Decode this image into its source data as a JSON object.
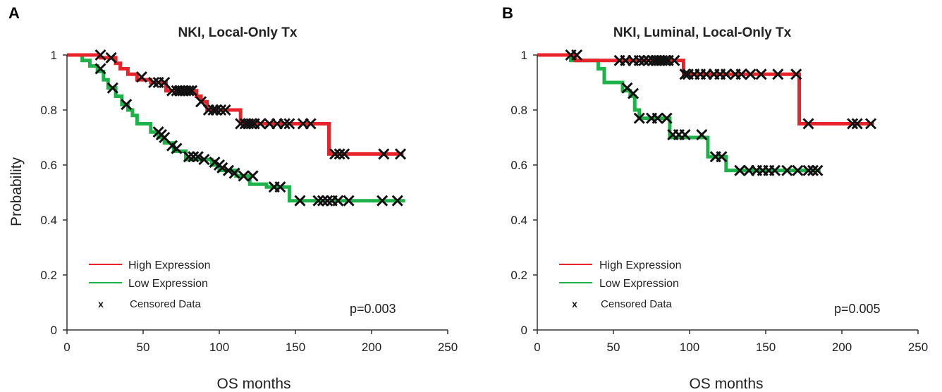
{
  "y_axis_label": "Probability",
  "x_axis_label": "OS months",
  "legend": {
    "high": "High Expression",
    "low": "Low Expression",
    "censored_marker": "x",
    "censored": "Censored Data"
  },
  "colors": {
    "high": "#e8242a",
    "low": "#1db34a",
    "censor": "#111111",
    "axis": "#333333"
  },
  "chart_data": [
    {
      "type": "line",
      "panel_label": "A",
      "title": "NKI, Local-Only Tx",
      "xlabel": "OS months",
      "ylabel": "Probability",
      "xlim": [
        0,
        250
      ],
      "ylim": [
        0,
        1
      ],
      "x_ticks": [
        0,
        50,
        100,
        150,
        200,
        250
      ],
      "y_ticks": [
        0,
        0.2,
        0.4,
        0.6,
        0.8,
        1
      ],
      "grid": false,
      "legend_position": "bottom-left",
      "p_value": "p=0.003",
      "series": [
        {
          "name": "High Expression",
          "step_points": [
            [
              0,
              1
            ],
            [
              22,
              1
            ],
            [
              22,
              0.99
            ],
            [
              32,
              0.99
            ],
            [
              32,
              0.97
            ],
            [
              35,
              0.97
            ],
            [
              35,
              0.95
            ],
            [
              40,
              0.95
            ],
            [
              40,
              0.93
            ],
            [
              46,
              0.93
            ],
            [
              46,
              0.91
            ],
            [
              55,
              0.91
            ],
            [
              55,
              0.9
            ],
            [
              65,
              0.9
            ],
            [
              65,
              0.87
            ],
            [
              85,
              0.87
            ],
            [
              85,
              0.85
            ],
            [
              88,
              0.85
            ],
            [
              88,
              0.83
            ],
            [
              92,
              0.83
            ],
            [
              92,
              0.8
            ],
            [
              114,
              0.8
            ],
            [
              114,
              0.75
            ],
            [
              172,
              0.75
            ],
            [
              172,
              0.64
            ],
            [
              221,
              0.64
            ]
          ],
          "censored": [
            [
              22,
              1
            ],
            [
              29,
              0.99
            ],
            [
              49,
              0.92
            ],
            [
              57,
              0.9
            ],
            [
              60,
              0.9
            ],
            [
              64,
              0.9
            ],
            [
              69,
              0.87
            ],
            [
              72,
              0.87
            ],
            [
              74,
              0.87
            ],
            [
              76,
              0.87
            ],
            [
              78,
              0.87
            ],
            [
              80,
              0.87
            ],
            [
              82,
              0.87
            ],
            [
              88,
              0.83
            ],
            [
              93,
              0.8
            ],
            [
              96,
              0.8
            ],
            [
              98,
              0.8
            ],
            [
              101,
              0.8
            ],
            [
              104,
              0.8
            ],
            [
              114,
              0.75
            ],
            [
              117,
              0.75
            ],
            [
              119,
              0.75
            ],
            [
              121,
              0.75
            ],
            [
              123,
              0.75
            ],
            [
              127,
              0.75
            ],
            [
              133,
              0.75
            ],
            [
              138,
              0.75
            ],
            [
              143,
              0.75
            ],
            [
              146,
              0.75
            ],
            [
              155,
              0.75
            ],
            [
              160,
              0.75
            ],
            [
              176,
              0.64
            ],
            [
              179,
              0.64
            ],
            [
              182,
              0.64
            ],
            [
              208,
              0.64
            ],
            [
              219,
              0.64
            ]
          ]
        },
        {
          "name": "Low Expression",
          "step_points": [
            [
              0,
              1
            ],
            [
              10,
              1
            ],
            [
              10,
              0.98
            ],
            [
              15,
              0.98
            ],
            [
              15,
              0.96
            ],
            [
              20,
              0.96
            ],
            [
              20,
              0.94
            ],
            [
              24,
              0.94
            ],
            [
              24,
              0.91
            ],
            [
              27,
              0.91
            ],
            [
              27,
              0.88
            ],
            [
              32,
              0.88
            ],
            [
              32,
              0.85
            ],
            [
              36,
              0.85
            ],
            [
              36,
              0.82
            ],
            [
              40,
              0.82
            ],
            [
              40,
              0.8
            ],
            [
              43,
              0.8
            ],
            [
              43,
              0.78
            ],
            [
              46,
              0.78
            ],
            [
              46,
              0.75
            ],
            [
              55,
              0.75
            ],
            [
              55,
              0.72
            ],
            [
              60,
              0.72
            ],
            [
              60,
              0.7
            ],
            [
              64,
              0.7
            ],
            [
              64,
              0.68
            ],
            [
              70,
              0.68
            ],
            [
              70,
              0.65
            ],
            [
              78,
              0.65
            ],
            [
              78,
              0.62
            ],
            [
              95,
              0.62
            ],
            [
              95,
              0.6
            ],
            [
              100,
              0.6
            ],
            [
              100,
              0.58
            ],
            [
              111,
              0.58
            ],
            [
              111,
              0.56
            ],
            [
              120,
              0.56
            ],
            [
              120,
              0.53
            ],
            [
              131,
              0.53
            ],
            [
              131,
              0.52
            ],
            [
              146,
              0.52
            ],
            [
              146,
              0.47
            ],
            [
              222,
              0.47
            ]
          ],
          "censored": [
            [
              22,
              0.95
            ],
            [
              30,
              0.88
            ],
            [
              39,
              0.82
            ],
            [
              60,
              0.72
            ],
            [
              62,
              0.71
            ],
            [
              64,
              0.7
            ],
            [
              69,
              0.67
            ],
            [
              72,
              0.66
            ],
            [
              80,
              0.63
            ],
            [
              83,
              0.63
            ],
            [
              86,
              0.63
            ],
            [
              90,
              0.62
            ],
            [
              97,
              0.61
            ],
            [
              100,
              0.6
            ],
            [
              102,
              0.59
            ],
            [
              106,
              0.58
            ],
            [
              110,
              0.57
            ],
            [
              116,
              0.56
            ],
            [
              122,
              0.56
            ],
            [
              136,
              0.52
            ],
            [
              140,
              0.52
            ],
            [
              153,
              0.47
            ],
            [
              165,
              0.47
            ],
            [
              168,
              0.47
            ],
            [
              171,
              0.47
            ],
            [
              174,
              0.47
            ],
            [
              178,
              0.47
            ],
            [
              185,
              0.47
            ],
            [
              207,
              0.47
            ],
            [
              217,
              0.47
            ]
          ]
        }
      ]
    },
    {
      "type": "line",
      "panel_label": "B",
      "title": "NKI, Luminal, Local-Only Tx",
      "xlabel": "OS months",
      "ylabel": "",
      "xlim": [
        0,
        250
      ],
      "ylim": [
        0,
        1
      ],
      "x_ticks": [
        0,
        50,
        100,
        150,
        200,
        250
      ],
      "y_ticks": [
        0,
        0.2,
        0.4,
        0.6,
        0.8,
        1
      ],
      "grid": false,
      "legend_position": "bottom-left",
      "p_value": "p=0.005",
      "series": [
        {
          "name": "High Expression",
          "step_points": [
            [
              0,
              1
            ],
            [
              25,
              1
            ],
            [
              25,
              0.98
            ],
            [
              96,
              0.98
            ],
            [
              96,
              0.93
            ],
            [
              172,
              0.93
            ],
            [
              172,
              0.75
            ],
            [
              221,
              0.75
            ]
          ],
          "censored": [
            [
              22,
              1
            ],
            [
              26,
              1
            ],
            [
              54,
              0.98
            ],
            [
              58,
              0.98
            ],
            [
              63,
              0.98
            ],
            [
              67,
              0.98
            ],
            [
              70,
              0.98
            ],
            [
              73,
              0.98
            ],
            [
              76,
              0.98
            ],
            [
              78,
              0.98
            ],
            [
              80,
              0.98
            ],
            [
              82,
              0.98
            ],
            [
              84,
              0.98
            ],
            [
              86,
              0.98
            ],
            [
              90,
              0.98
            ],
            [
              97,
              0.93
            ],
            [
              99,
              0.93
            ],
            [
              103,
              0.93
            ],
            [
              107,
              0.93
            ],
            [
              111,
              0.93
            ],
            [
              116,
              0.93
            ],
            [
              120,
              0.93
            ],
            [
              124,
              0.93
            ],
            [
              130,
              0.93
            ],
            [
              134,
              0.93
            ],
            [
              140,
              0.93
            ],
            [
              147,
              0.93
            ],
            [
              158,
              0.93
            ],
            [
              170,
              0.93
            ],
            [
              178,
              0.75
            ],
            [
              207,
              0.75
            ],
            [
              210,
              0.75
            ],
            [
              219,
              0.75
            ]
          ]
        },
        {
          "name": "Low Expression",
          "step_points": [
            [
              0,
              1
            ],
            [
              22,
              1
            ],
            [
              22,
              0.98
            ],
            [
              40,
              0.98
            ],
            [
              40,
              0.95
            ],
            [
              44,
              0.95
            ],
            [
              44,
              0.9
            ],
            [
              56,
              0.9
            ],
            [
              56,
              0.87
            ],
            [
              61,
              0.87
            ],
            [
              61,
              0.85
            ],
            [
              64,
              0.85
            ],
            [
              64,
              0.8
            ],
            [
              67,
              0.8
            ],
            [
              67,
              0.77
            ],
            [
              87,
              0.77
            ],
            [
              87,
              0.7
            ],
            [
              112,
              0.7
            ],
            [
              112,
              0.63
            ],
            [
              124,
              0.63
            ],
            [
              124,
              0.58
            ],
            [
              186,
              0.58
            ]
          ],
          "censored": [
            [
              59,
              0.88
            ],
            [
              63,
              0.86
            ],
            [
              67,
              0.77
            ],
            [
              75,
              0.77
            ],
            [
              79,
              0.77
            ],
            [
              85,
              0.77
            ],
            [
              89,
              0.71
            ],
            [
              93,
              0.71
            ],
            [
              97,
              0.71
            ],
            [
              108,
              0.71
            ],
            [
              117,
              0.63
            ],
            [
              121,
              0.63
            ],
            [
              133,
              0.58
            ],
            [
              139,
              0.58
            ],
            [
              144,
              0.58
            ],
            [
              148,
              0.58
            ],
            [
              152,
              0.58
            ],
            [
              156,
              0.58
            ],
            [
              164,
              0.58
            ],
            [
              171,
              0.58
            ],
            [
              178,
              0.58
            ],
            [
              181,
              0.58
            ],
            [
              184,
              0.58
            ]
          ]
        }
      ]
    }
  ]
}
